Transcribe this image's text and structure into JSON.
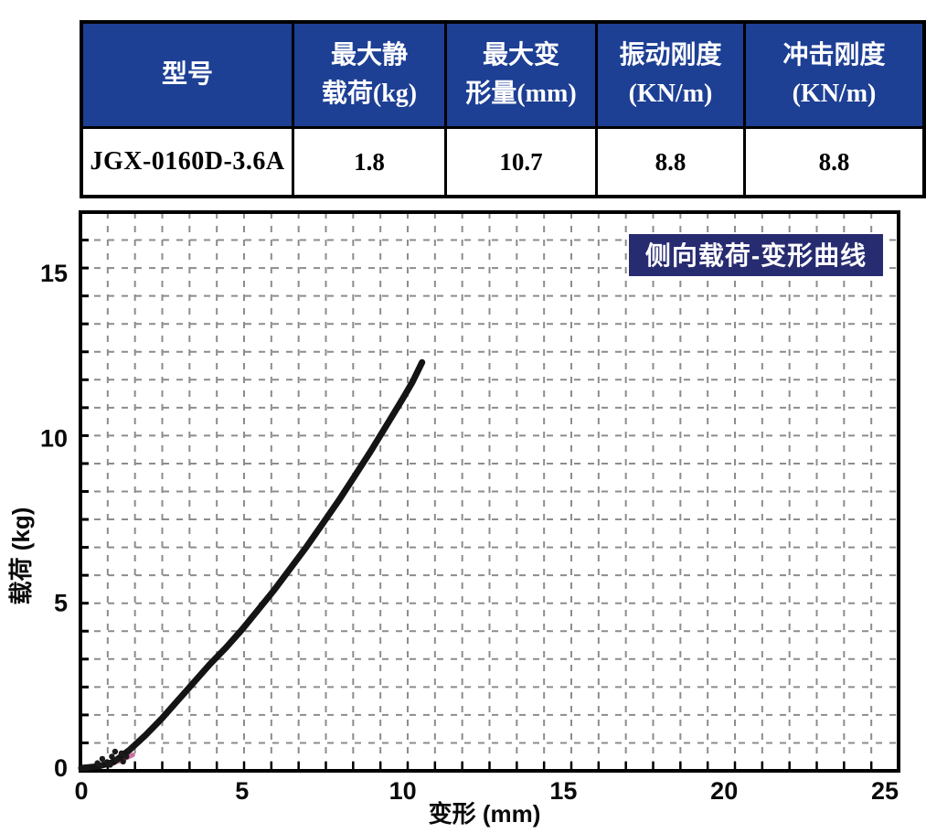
{
  "table": {
    "header_bg": "#1d3f94",
    "header_text_color": "#ffffff",
    "border_color": "#000000",
    "headers": [
      {
        "lines": [
          "型号",
          ""
        ]
      },
      {
        "lines": [
          "最大静",
          "载荷(kg)"
        ]
      },
      {
        "lines": [
          "最大变",
          "形量(mm)"
        ]
      },
      {
        "lines": [
          "振动刚度",
          "(KN/m)"
        ]
      },
      {
        "lines": [
          "冲击刚度",
          "(KN/m)"
        ]
      }
    ],
    "row": [
      "JGX-0160D-3.6A",
      "1.8",
      "10.7",
      "8.8",
      "8.8"
    ]
  },
  "chart_data": {
    "type": "line",
    "title": "侧向载荷-变形曲线",
    "xlabel": "变形 (mm)",
    "ylabel": "载荷 (kg)",
    "xlim": [
      0,
      25.4
    ],
    "ylim": [
      0,
      16.9
    ],
    "xticks": [
      0,
      5,
      10,
      15,
      20,
      25
    ],
    "yticks": [
      0,
      5,
      10,
      15
    ],
    "grid": "dashed",
    "legend_bg": "#272b70",
    "curve_color": "#141414",
    "accent_pink": "#c2568c",
    "series": [
      {
        "name": "侧向载荷-变形曲线",
        "points": [
          [
            0,
            0
          ],
          [
            0.5,
            0.05
          ],
          [
            1,
            0.18
          ],
          [
            1.5,
            0.55
          ],
          [
            2,
            1.0
          ],
          [
            2.5,
            1.5
          ],
          [
            3,
            2.05
          ],
          [
            3.5,
            2.6
          ],
          [
            4,
            3.15
          ],
          [
            4.5,
            3.65
          ],
          [
            5,
            4.2
          ],
          [
            5.5,
            4.8
          ],
          [
            6,
            5.4
          ],
          [
            6.5,
            6.05
          ],
          [
            7,
            6.7
          ],
          [
            7.5,
            7.4
          ],
          [
            8,
            8.1
          ],
          [
            8.5,
            8.85
          ],
          [
            9,
            9.6
          ],
          [
            9.5,
            10.4
          ],
          [
            10,
            11.2
          ],
          [
            10.3,
            11.7
          ],
          [
            10.6,
            12.3
          ]
        ]
      }
    ],
    "origin_pink": [
      [
        0.05,
        0.02
      ],
      [
        0.4,
        0.06
      ],
      [
        0.8,
        0.12
      ],
      [
        1.2,
        0.22
      ],
      [
        1.6,
        0.4
      ]
    ],
    "origin_cluster": [
      [
        0.5,
        0.15
      ],
      [
        0.65,
        0.28
      ],
      [
        0.8,
        0.18
      ],
      [
        0.95,
        0.35
      ],
      [
        1.1,
        0.25
      ],
      [
        1.25,
        0.45
      ],
      [
        1.4,
        0.35
      ],
      [
        0.6,
        0.08
      ],
      [
        0.9,
        0.1
      ],
      [
        1.05,
        0.5
      ],
      [
        1.3,
        0.2
      ],
      [
        1.5,
        0.55
      ]
    ]
  }
}
